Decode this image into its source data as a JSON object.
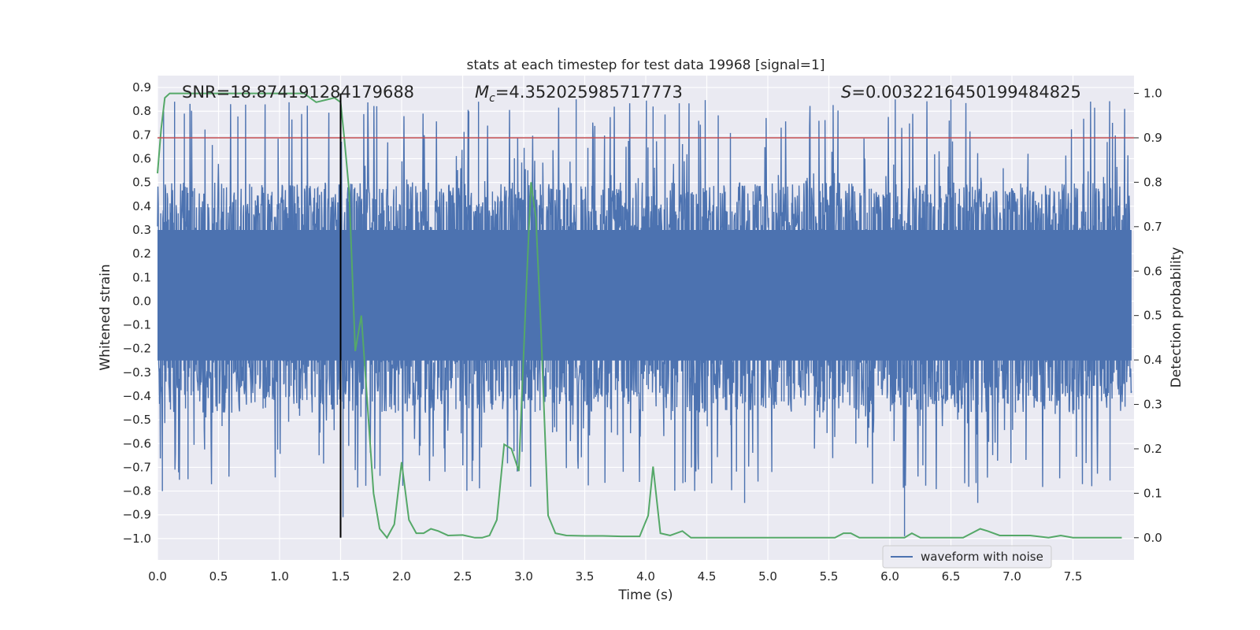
{
  "chart_data": {
    "type": "line",
    "title": "stats at each timestep for test data 19968 [signal=1]",
    "xlabel": "Time (s)",
    "ylabel": "Whitened strain",
    "y2label": "Detection probability",
    "xlim": [
      0.0,
      8.0
    ],
    "ylim": [
      -1.09,
      0.95
    ],
    "y2lim": [
      -0.05,
      1.04
    ],
    "x_ticks": [
      "0.0",
      "0.5",
      "1.0",
      "1.5",
      "2.0",
      "2.5",
      "3.0",
      "3.5",
      "4.0",
      "4.5",
      "5.0",
      "5.5",
      "6.0",
      "6.5",
      "7.0",
      "7.5"
    ],
    "y_ticks": [
      "0.9",
      "0.8",
      "0.7",
      "0.6",
      "0.5",
      "0.4",
      "0.3",
      "0.2",
      "0.1",
      "0.0",
      "−0.1",
      "−0.2",
      "−0.3",
      "−0.4",
      "−0.5",
      "−0.6",
      "−0.7",
      "−0.8",
      "−0.9",
      "−1.0"
    ],
    "y2_ticks": [
      "1.0",
      "0.9",
      "0.8",
      "0.7",
      "0.6",
      "0.5",
      "0.4",
      "0.3",
      "0.2",
      "0.1",
      "0.0"
    ],
    "annotations": {
      "snr": "SNR=18.874191284179688",
      "mc_symbol": "M",
      "mc_sub": "c",
      "mc_value": "=4.352025985717773",
      "s_symbol": "S",
      "s_value": "=0.0032216450199484825"
    },
    "legend": {
      "label": "waveform with noise",
      "placement": "lower-right"
    },
    "threshold": {
      "value": 0.9,
      "axis": "right",
      "color": "#c44e52"
    },
    "marker_time": 1.5,
    "series": [
      {
        "name": "waveform with noise",
        "axis": "left",
        "color": "#4c72b0",
        "envelope": {
          "core_low": -0.25,
          "core_high": 0.3,
          "spike_max": 0.85,
          "spike_min": -1.0,
          "seed": 19968
        },
        "noted_spikes": [
          [
            0.05,
            0.8
          ],
          [
            0.14,
            0.84
          ],
          [
            0.22,
            0.79
          ],
          [
            1.5,
            0.86
          ],
          [
            2.55,
            0.8
          ],
          [
            2.63,
            0.84
          ],
          [
            3.43,
            0.85
          ],
          [
            4.06,
            0.82
          ],
          [
            6.5,
            0.85
          ],
          [
            6.12,
            -0.99
          ],
          [
            6.72,
            -0.85
          ],
          [
            4.81,
            -0.85
          ],
          [
            3.27,
            -0.55
          ],
          [
            1.52,
            -0.91
          ],
          [
            0.04,
            -0.8
          ],
          [
            0.25,
            -0.75
          ]
        ]
      },
      {
        "name": "detection probability",
        "axis": "right",
        "color": "#55a868",
        "x": [
          0.0,
          0.03,
          0.06,
          0.1,
          0.15,
          0.25,
          1.2,
          1.3,
          1.45,
          1.5,
          1.53,
          1.57,
          1.62,
          1.67,
          1.72,
          1.77,
          1.82,
          1.88,
          1.94,
          2.0,
          2.06,
          2.12,
          2.18,
          2.24,
          2.3,
          2.38,
          2.5,
          2.6,
          2.66,
          2.72,
          2.78,
          2.84,
          2.9,
          2.96,
          3.02,
          3.06,
          3.1,
          3.14,
          3.2,
          3.26,
          3.35,
          3.5,
          3.65,
          3.8,
          3.95,
          4.02,
          4.06,
          4.12,
          4.2,
          4.3,
          4.37,
          4.45,
          4.6,
          4.8,
          5.0,
          5.2,
          5.4,
          5.55,
          5.62,
          5.68,
          5.75,
          5.9,
          6.05,
          6.12,
          6.18,
          6.25,
          6.35,
          6.45,
          6.6,
          6.67,
          6.74,
          6.8,
          6.9,
          7.0,
          7.15,
          7.3,
          7.4,
          7.5,
          7.7,
          7.9
        ],
        "y": [
          0.82,
          0.92,
          0.99,
          1.0,
          1.0,
          1.0,
          1.0,
          0.98,
          0.99,
          0.98,
          0.9,
          0.78,
          0.42,
          0.5,
          0.3,
          0.1,
          0.02,
          0.0,
          0.03,
          0.17,
          0.04,
          0.01,
          0.01,
          0.02,
          0.015,
          0.005,
          0.006,
          0.0,
          0.0,
          0.005,
          0.04,
          0.21,
          0.2,
          0.15,
          0.55,
          0.8,
          0.72,
          0.48,
          0.05,
          0.01,
          0.005,
          0.004,
          0.004,
          0.003,
          0.003,
          0.05,
          0.16,
          0.01,
          0.005,
          0.015,
          0.0,
          0.0,
          0.0,
          0.0,
          0.0,
          0.0,
          0.0,
          0.0,
          0.01,
          0.01,
          0.0,
          0.0,
          0.0,
          0.0,
          0.01,
          0.0,
          0.0,
          0.0,
          0.0,
          0.01,
          0.02,
          0.015,
          0.005,
          0.005,
          0.005,
          0.0,
          0.005,
          0.0,
          0.0,
          0.0
        ]
      }
    ]
  }
}
